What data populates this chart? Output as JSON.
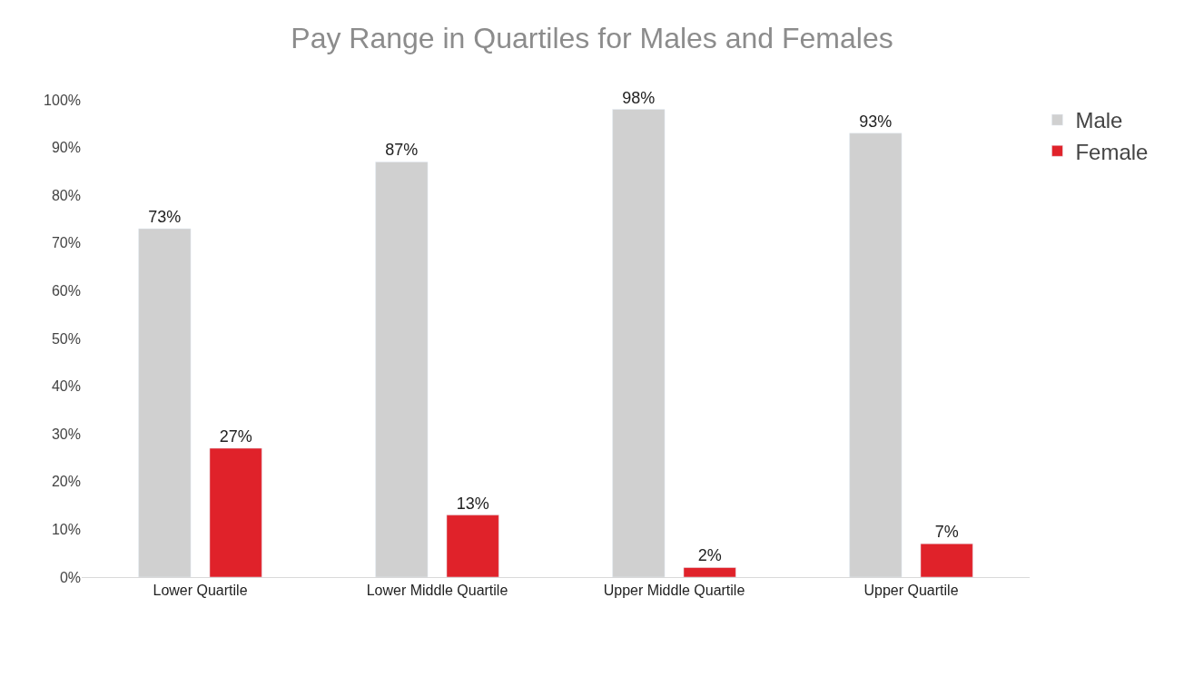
{
  "chart_data": {
    "type": "bar",
    "title": "Pay Range in Quartiles for Males and Females",
    "categories": [
      "Lower Quartile",
      "Lower Middle Quartile",
      "Upper Middle Quartile",
      "Upper Quartile"
    ],
    "series": [
      {
        "name": "Male",
        "color": "#d0d0d0",
        "values": [
          73,
          87,
          98,
          93
        ],
        "value_labels": [
          "73%",
          "87%",
          "98%",
          "93%"
        ]
      },
      {
        "name": "Female",
        "color": "#e0222a",
        "values": [
          27,
          13,
          2,
          7
        ],
        "value_labels": [
          "27%",
          "13%",
          "2%",
          "7%"
        ]
      }
    ],
    "ylim": [
      0,
      100
    ],
    "yticks": [
      {
        "value": 0,
        "label": "0%"
      },
      {
        "value": 10,
        "label": "10%"
      },
      {
        "value": 20,
        "label": "20%"
      },
      {
        "value": 30,
        "label": "30%"
      },
      {
        "value": 40,
        "label": "40%"
      },
      {
        "value": 50,
        "label": "50%"
      },
      {
        "value": 60,
        "label": "60%"
      },
      {
        "value": 70,
        "label": "70%"
      },
      {
        "value": 80,
        "label": "80%"
      },
      {
        "value": 90,
        "label": "90%"
      },
      {
        "value": 100,
        "label": "100%"
      }
    ],
    "legend": "top right"
  }
}
